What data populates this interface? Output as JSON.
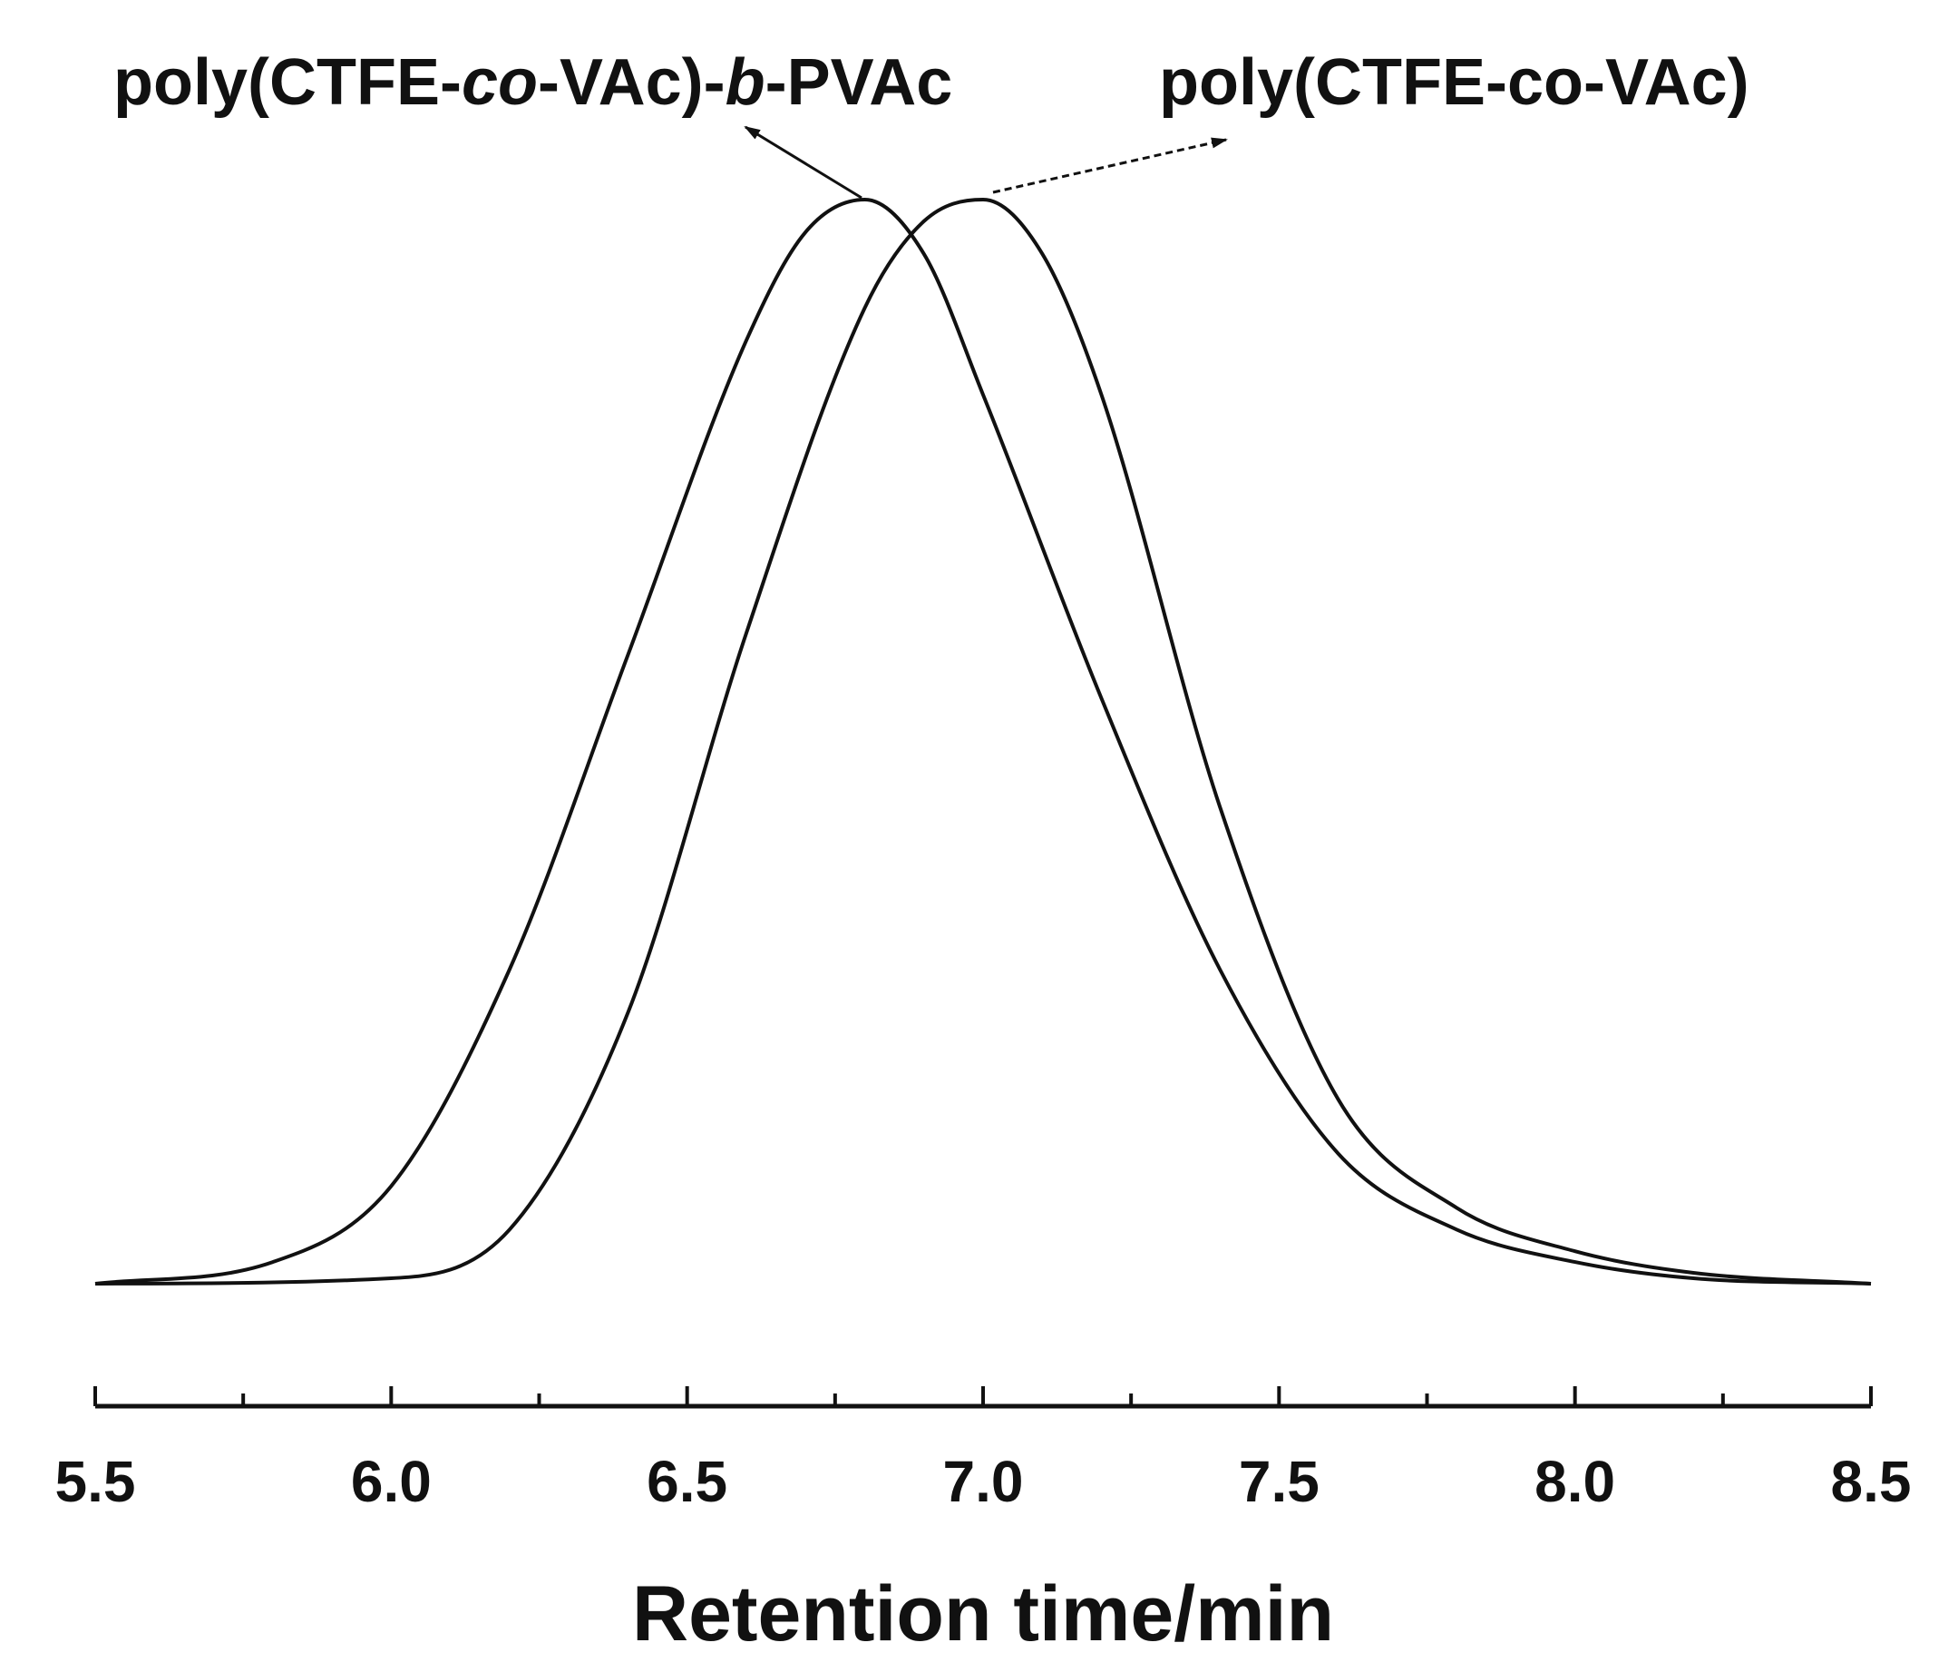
{
  "chart_data": {
    "type": "line",
    "title": "",
    "xlabel": "Retention time/min",
    "ylabel": "",
    "xlim": [
      5.5,
      8.5
    ],
    "ylim": [
      0,
      1
    ],
    "xticks": [
      "5.5",
      "6.0",
      "6.5",
      "7.0",
      "7.5",
      "8.0",
      "8.5"
    ],
    "grid": false,
    "series": [
      {
        "name": "poly(CTFE-co-VAc)-b-PVAc",
        "label_parts": [
          "poly(CTFE-",
          "co",
          "-VAc)-",
          "b",
          "-PVAc"
        ],
        "x": [
          5.5,
          5.8,
          6.0,
          6.2,
          6.4,
          6.6,
          6.7,
          6.8,
          6.9,
          7.0,
          7.2,
          7.4,
          7.6,
          7.8,
          8.0,
          8.2,
          8.5
        ],
        "y": [
          0.0,
          0.02,
          0.09,
          0.29,
          0.58,
          0.87,
          0.97,
          1.0,
          0.95,
          0.82,
          0.54,
          0.29,
          0.12,
          0.05,
          0.02,
          0.005,
          0.0
        ]
      },
      {
        "name": "poly(CTFE-co-VAc)",
        "label_parts": [
          "poly(CTFE-co-VAc)"
        ],
        "x": [
          5.5,
          6.0,
          6.2,
          6.4,
          6.6,
          6.8,
          6.9,
          7.0,
          7.1,
          7.2,
          7.4,
          7.6,
          7.8,
          8.0,
          8.2,
          8.5
        ],
        "y": [
          0.0,
          0.005,
          0.05,
          0.25,
          0.6,
          0.9,
          0.98,
          1.0,
          0.95,
          0.82,
          0.44,
          0.17,
          0.07,
          0.03,
          0.01,
          0.0
        ]
      }
    ],
    "annotations": [
      {
        "text": "poly(CTFE-co-VAc)-b-PVAc",
        "points_to": "peak of poly(CTFE-co-VAc)-b-PVAc",
        "peak_x": 6.8
      },
      {
        "text": "poly(CTFE-co-VAc)",
        "points_to": "peak of poly(CTFE-co-VAc)",
        "peak_x": 7.03
      }
    ]
  }
}
